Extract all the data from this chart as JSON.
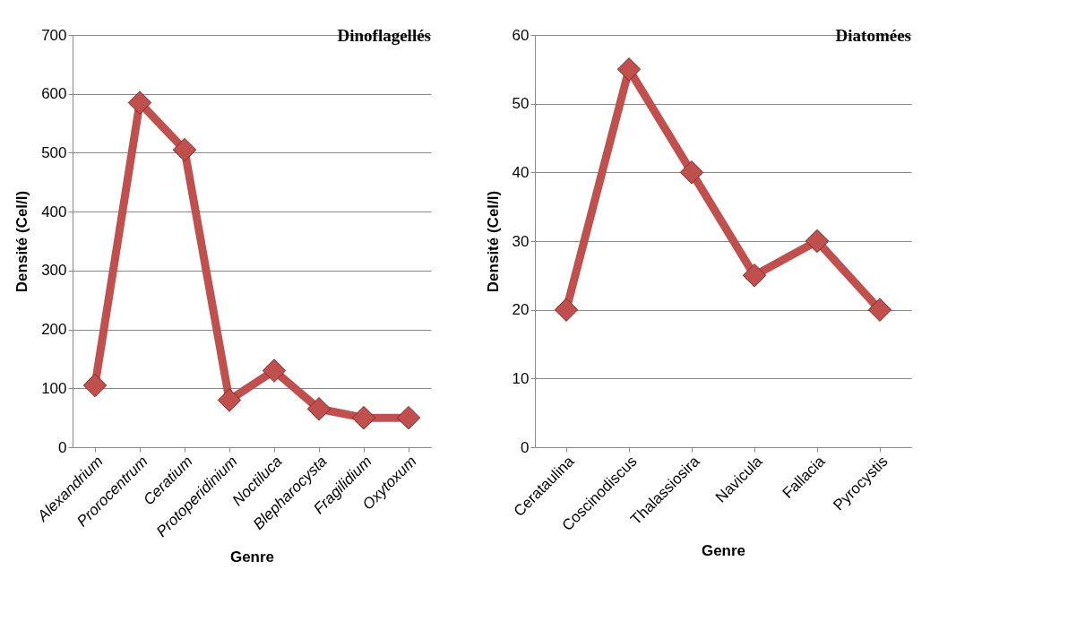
{
  "chart_data": [
    {
      "type": "line",
      "title": "Dinoflagellés",
      "xlabel": "Genre",
      "ylabel": "Densité (Cel/l)",
      "categories": [
        "Alexandrium",
        "Prorocentrum",
        "Ceratium",
        "Protoperidinium",
        "Noctiluca",
        "Blepharocysta",
        "Fragilidium",
        "Oxytoxum"
      ],
      "series": [
        {
          "color": "#c0504d",
          "values": [
            105,
            585,
            505,
            80,
            130,
            65,
            50,
            50
          ]
        }
      ],
      "ylim": [
        0,
        700
      ],
      "yticks": [
        0,
        100,
        200,
        300,
        400,
        500,
        600,
        700
      ],
      "grid": "y",
      "marker": "diamond",
      "line_style": "solid"
    },
    {
      "type": "line",
      "title": "Diatomées",
      "xlabel": "Genre",
      "ylabel": "Densité (Cel/l)",
      "categories": [
        "Cerataulina",
        "Coscinodiscus",
        "Thalassiosira",
        "Navicula",
        "Fallacia",
        "Pyrocystis"
      ],
      "series": [
        {
          "color": "#c0504d",
          "values": [
            20,
            55,
            40,
            25,
            30,
            20
          ]
        }
      ],
      "ylim": [
        0,
        60
      ],
      "yticks": [
        0,
        10,
        20,
        30,
        40,
        50,
        60
      ],
      "grid": "y",
      "marker": "diamond",
      "line_style": "solid"
    }
  ]
}
